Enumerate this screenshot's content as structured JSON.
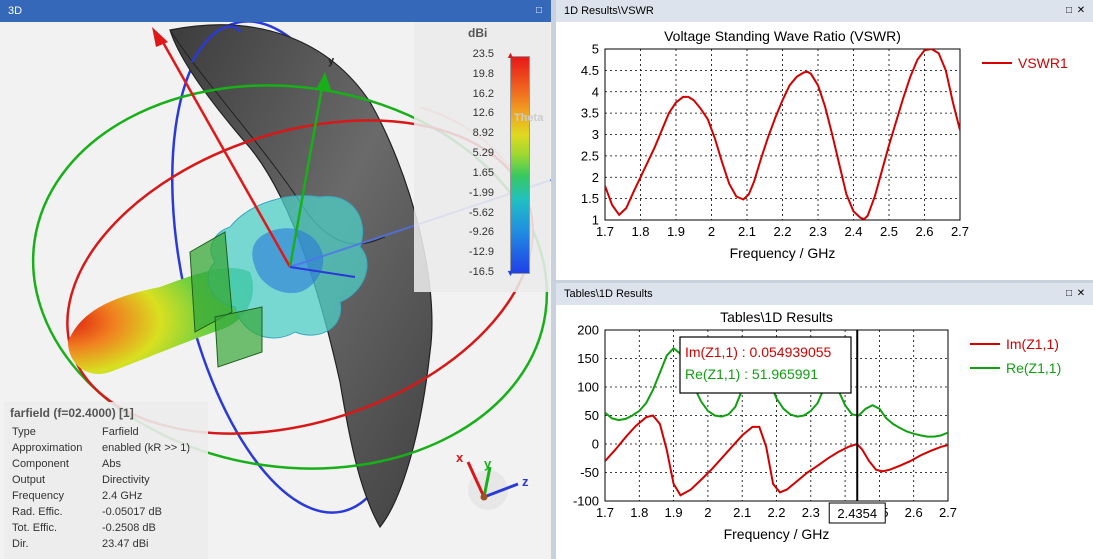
{
  "panels": {
    "p3d_title": "3D",
    "vswr_title": "1D Results\\VSWR",
    "tab_title": "Tables\\1D Results"
  },
  "colorbar": {
    "unit": "dBi",
    "theta": "Theta",
    "labels": [
      "23.5",
      "19.8",
      "16.2",
      "12.6",
      "8.92",
      "5.29",
      "1.65",
      "-1.99",
      "-5.62",
      "-9.26",
      "-12.9",
      "-16.5"
    ]
  },
  "axes3d": {
    "y": "y",
    "x": "x",
    "z": "z"
  },
  "info": {
    "header": "farfield (f=02.4000) [1]",
    "rows": [
      {
        "k": "Type",
        "v": "Farfield"
      },
      {
        "k": "Approximation",
        "v": "enabled (kR >> 1)"
      },
      {
        "k": "Component",
        "v": "Abs"
      },
      {
        "k": "Output",
        "v": "Directivity"
      },
      {
        "k": "Frequency",
        "v": "2.4 GHz"
      },
      {
        "k": "Rad. Effic.",
        "v": "-0.05017 dB"
      },
      {
        "k": "Tot. Effic.",
        "v": "-0.2508 dB"
      },
      {
        "k": "Dir.",
        "v": "23.47 dBi"
      }
    ]
  },
  "colors": {
    "vswr": "#d40000",
    "im": "#d40000",
    "re": "#10a010",
    "titlebar_active": "#3568b8"
  },
  "chart_data": [
    {
      "type": "line",
      "title": "Voltage Standing Wave Ratio (VSWR)",
      "xlabel": "Frequency / GHz",
      "ylabel": "",
      "xlim": [
        1.7,
        2.7
      ],
      "ylim": [
        1,
        5
      ],
      "xticks": [
        "1.7",
        "1.8",
        "1.9",
        "2",
        "2.1",
        "2.2",
        "2.3",
        "2.4",
        "2.5",
        "2.6",
        "2.7"
      ],
      "yticks": [
        "1",
        "1.5",
        "2",
        "2.5",
        "3",
        "3.5",
        "4",
        "4.5",
        "5"
      ],
      "grid": true,
      "legend_position": "right",
      "series": [
        {
          "name": "VSWR1",
          "x": [
            1.7,
            1.72,
            1.74,
            1.76,
            1.78,
            1.8,
            1.82,
            1.84,
            1.86,
            1.88,
            1.9,
            1.92,
            1.935,
            1.95,
            1.97,
            1.99,
            2.01,
            2.03,
            2.05,
            2.07,
            2.09,
            2.105,
            2.12,
            2.14,
            2.16,
            2.18,
            2.2,
            2.22,
            2.24,
            2.26,
            2.27,
            2.28,
            2.3,
            2.32,
            2.34,
            2.36,
            2.38,
            2.4,
            2.42,
            2.43,
            2.44,
            2.46,
            2.48,
            2.5,
            2.52,
            2.54,
            2.56,
            2.58,
            2.6,
            2.62,
            2.64,
            2.66,
            2.68,
            2.7
          ],
          "y": [
            1.8,
            1.35,
            1.12,
            1.28,
            1.65,
            2.0,
            2.35,
            2.7,
            3.1,
            3.5,
            3.75,
            3.88,
            3.88,
            3.8,
            3.6,
            3.35,
            2.9,
            2.35,
            1.85,
            1.55,
            1.48,
            1.6,
            1.9,
            2.45,
            2.95,
            3.4,
            3.8,
            4.15,
            4.35,
            4.45,
            4.47,
            4.42,
            4.15,
            3.65,
            3.0,
            2.3,
            1.6,
            1.2,
            1.05,
            1.02,
            1.1,
            1.55,
            2.15,
            2.75,
            3.3,
            3.85,
            4.35,
            4.75,
            4.97,
            5.0,
            4.9,
            4.5,
            3.75,
            3.1
          ]
        }
      ]
    },
    {
      "type": "line",
      "title": "Tables\\1D Results",
      "xlabel": "Frequency / GHz",
      "ylabel": "",
      "xlim": [
        1.7,
        2.7
      ],
      "ylim": [
        -100,
        200
      ],
      "xticks": [
        "1.7",
        "1.8",
        "1.9",
        "2",
        "2.1",
        "2.2",
        "2.3",
        "2.4",
        "2.5",
        "2.6",
        "2.7"
      ],
      "yticks": [
        "-100",
        "-50",
        "0",
        "50",
        "100",
        "150",
        "200"
      ],
      "grid": true,
      "legend_position": "right",
      "marker": {
        "x": 2.4354,
        "x_label": "2.4354",
        "readouts": [
          {
            "label": "Im(Z1,1) : 0.054939055",
            "series": "Im(Z1,1)"
          },
          {
            "label": "Re(Z1,1) : 51.965991",
            "series": "Re(Z1,1)"
          }
        ]
      },
      "series": [
        {
          "name": "Im(Z1,1)",
          "x": [
            1.7,
            1.73,
            1.76,
            1.79,
            1.82,
            1.84,
            1.86,
            1.88,
            1.9,
            1.92,
            1.95,
            1.98,
            2.01,
            2.04,
            2.07,
            2.1,
            2.13,
            2.15,
            2.17,
            2.19,
            2.21,
            2.23,
            2.26,
            2.29,
            2.32,
            2.35,
            2.38,
            2.41,
            2.435,
            2.45,
            2.47,
            2.49,
            2.51,
            2.53,
            2.56,
            2.59,
            2.62,
            2.65,
            2.68,
            2.7
          ],
          "y": [
            -30,
            -10,
            12,
            32,
            47,
            50,
            35,
            -10,
            -70,
            -90,
            -80,
            -63,
            -45,
            -25,
            -5,
            15,
            30,
            30,
            -5,
            -70,
            -85,
            -80,
            -65,
            -50,
            -38,
            -25,
            -14,
            -5,
            0,
            -10,
            -30,
            -45,
            -48,
            -45,
            -38,
            -30,
            -20,
            -12,
            -5,
            -2
          ]
        },
        {
          "name": "Re(Z1,1)",
          "x": [
            1.7,
            1.72,
            1.74,
            1.76,
            1.78,
            1.8,
            1.82,
            1.84,
            1.86,
            1.88,
            1.9,
            1.92,
            1.94,
            1.96,
            1.98,
            2.0,
            2.02,
            2.04,
            2.06,
            2.08,
            2.1,
            2.12,
            2.14,
            2.16,
            2.18,
            2.2,
            2.22,
            2.24,
            2.26,
            2.28,
            2.3,
            2.32,
            2.34,
            2.36,
            2.38,
            2.4,
            2.42,
            2.44,
            2.46,
            2.48,
            2.5,
            2.52,
            2.54,
            2.56,
            2.58,
            2.6,
            2.62,
            2.64,
            2.66,
            2.68,
            2.7
          ],
          "y": [
            55,
            45,
            42,
            44,
            50,
            58,
            72,
            95,
            125,
            155,
            168,
            158,
            130,
            100,
            75,
            58,
            50,
            48,
            52,
            65,
            95,
            145,
            168,
            150,
            110,
            80,
            62,
            52,
            48,
            50,
            58,
            72,
            100,
            118,
            95,
            68,
            52,
            50,
            62,
            68,
            62,
            45,
            35,
            28,
            22,
            18,
            15,
            13,
            13,
            15,
            20
          ]
        }
      ]
    }
  ]
}
